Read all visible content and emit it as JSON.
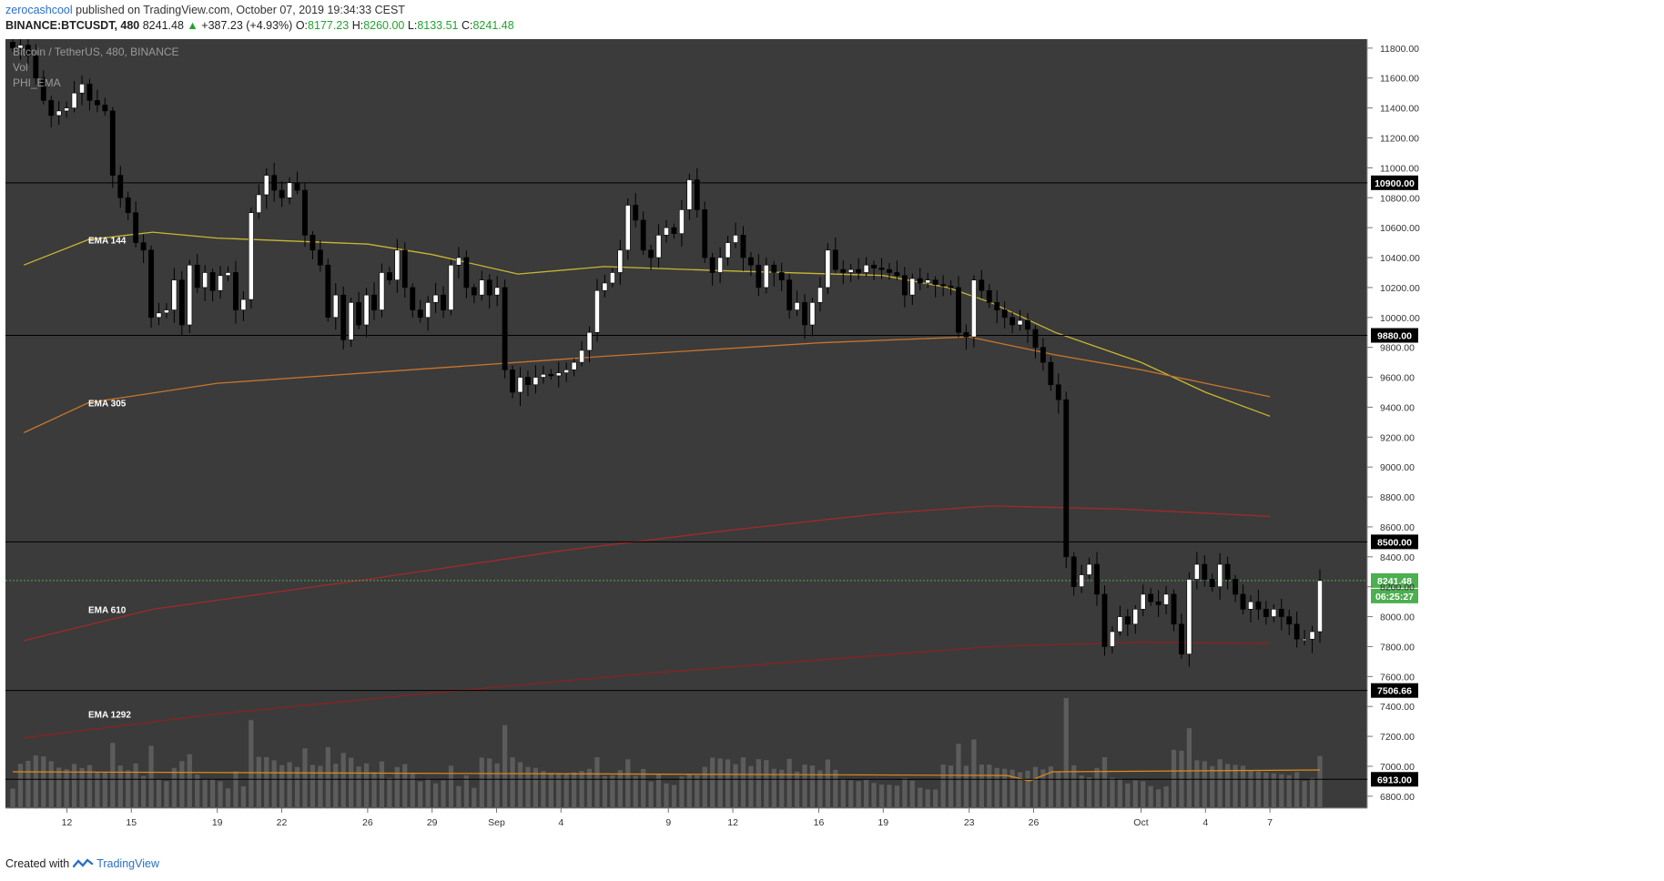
{
  "header": {
    "user": "zerocashcool",
    "published_text": "published on TradingView.com, October 07, 2019 19:34:33 CEST"
  },
  "quote": {
    "symbol": "BINANCE:BTCUSDT, 480",
    "last": "8241.48",
    "change_arrow": "▲",
    "change": "+387.23 (+4.93%)",
    "open_label": "O:",
    "open": "8177.23",
    "high_label": "H:",
    "high": "8260.00",
    "low_label": "L:",
    "low": "8133.51",
    "close_label": "C:",
    "close": "8241.48",
    "up_color": "#22a22f"
  },
  "legend": {
    "title": "Bitcoin / TetherUS, 480, BINANCE",
    "vol": "Vol",
    "indicator": "PHI_EMA"
  },
  "footer": {
    "created_with": "Created with",
    "brand": "TradingView"
  },
  "colors": {
    "background": "#3b3b3b",
    "candle_up": "#ffffff",
    "candle_down": "#000000",
    "ema144": "#c8b832",
    "ema305": "#c8762c",
    "ema610": "#a02a2a",
    "ema1292": "#8a2222",
    "volume": "#5c5c5c",
    "volume_ma": "#e08a1a",
    "last_price": "#4caf50"
  },
  "price_badges": {
    "last": "8241.48",
    "countdown": "06:25:27"
  },
  "chart_data": {
    "type": "candlestick",
    "title": "Bitcoin / TetherUS, 480, BINANCE",
    "y_axis": {
      "range": [
        6720,
        11860
      ],
      "ticks": [
        6800,
        7000,
        7200,
        7400,
        7600,
        7800,
        8000,
        8200,
        8400,
        8600,
        8800,
        9000,
        9200,
        9400,
        9600,
        9800,
        10000,
        10200,
        10400,
        10600,
        10800,
        11000,
        11200,
        11400,
        11600,
        11800
      ]
    },
    "x_axis": {
      "tick_labels": [
        "12",
        "15",
        "19",
        "22",
        "26",
        "29",
        "Sep",
        "4",
        "9",
        "12",
        "16",
        "19",
        "23",
        "26",
        "Oct",
        "4",
        "7"
      ]
    },
    "horizontal_levels": [
      {
        "label": "10900.00",
        "value": 10900,
        "axis_badge": true
      },
      {
        "label": "9880.00",
        "value": 9880,
        "axis_badge": true
      },
      {
        "label": "8500.00",
        "value": 8500,
        "axis_badge": true
      },
      {
        "label": "7506.66",
        "value": 7506.66,
        "axis_badge": true
      },
      {
        "label": "6913.00",
        "value": 6913,
        "axis_badge": true
      }
    ],
    "close_series": [
      11800,
      11820,
      11750,
      11600,
      11450,
      11350,
      11380,
      11400,
      11500,
      11560,
      11450,
      11420,
      11380,
      10950,
      10800,
      10700,
      10500,
      10450,
      10000,
      10030,
      10050,
      10250,
      9950,
      10350,
      10200,
      10300,
      10180,
      10280,
      10300,
      10050,
      10120,
      10700,
      10820,
      10950,
      10850,
      10800,
      10900,
      10850,
      10550,
      10450,
      10350,
      10000,
      10150,
      9850,
      10100,
      9950,
      10150,
      10050,
      10300,
      10250,
      10450,
      10200,
      10050,
      10000,
      10100,
      10150,
      10050,
      10350,
      10400,
      10200,
      10150,
      10250,
      10150,
      10200,
      9650,
      9500,
      9600,
      9550,
      9600,
      9620,
      9610,
      9630,
      9650,
      9700,
      9780,
      9900,
      10180,
      10230,
      10300,
      10450,
      10750,
      10650,
      10450,
      10400,
      10550,
      10600,
      10560,
      10720,
      10920,
      10720,
      10400,
      10300,
      10400,
      10500,
      10550,
      10400,
      10350,
      10200,
      10350,
      10300,
      10250,
      10050,
      10100,
      9950,
      10100,
      10200,
      10450,
      10320,
      10300,
      10320,
      10300,
      10350,
      10330,
      10320,
      10300,
      10280,
      10150,
      10260,
      10230,
      10250,
      10220,
      10210,
      10200,
      9900,
      9870,
      10250,
      10180,
      10100,
      10050,
      10000,
      9950,
      9980,
      9920,
      9800,
      9700,
      9550,
      9450,
      8400,
      8200,
      8280,
      8350,
      8150,
      7800,
      7900,
      8000,
      7950,
      8050,
      8150,
      8100,
      8080,
      8150,
      7950,
      7750,
      8250,
      8350,
      8250,
      8200,
      8350,
      8250,
      8150,
      8050,
      8100,
      8050,
      8000,
      8050,
      8000,
      7950,
      7850,
      7850,
      7900,
      8241.48
    ],
    "ema_144": [
      {
        "x": "Aug 10",
        "y": 10350
      },
      {
        "x": "Aug 13",
        "y": 10520
      },
      {
        "x": "Aug 16",
        "y": 10570
      },
      {
        "x": "Aug 19",
        "y": 10530
      },
      {
        "x": "Aug 26",
        "y": 10490
      },
      {
        "x": "Aug 29",
        "y": 10420
      },
      {
        "x": "Sep 2",
        "y": 10290
      },
      {
        "x": "Sep 6",
        "y": 10340
      },
      {
        "x": "Sep 12",
        "y": 10310
      },
      {
        "x": "Sep 19",
        "y": 10280
      },
      {
        "x": "Sep 22",
        "y": 10200
      },
      {
        "x": "Sep 24",
        "y": 10100
      },
      {
        "x": "Sep 27",
        "y": 9900
      },
      {
        "x": "Oct 1",
        "y": 9700
      },
      {
        "x": "Oct 4",
        "y": 9500
      },
      {
        "x": "Oct 7",
        "y": 9340
      }
    ],
    "ema_305": [
      {
        "x": "Aug 10",
        "y": 9230
      },
      {
        "x": "Aug 13",
        "y": 9430
      },
      {
        "x": "Aug 19",
        "y": 9560
      },
      {
        "x": "Aug 29",
        "y": 9660
      },
      {
        "x": "Sep 6",
        "y": 9740
      },
      {
        "x": "Sep 16",
        "y": 9830
      },
      {
        "x": "Sep 23",
        "y": 9870
      },
      {
        "x": "Sep 27",
        "y": 9750
      },
      {
        "x": "Oct 1",
        "y": 9650
      },
      {
        "x": "Oct 4",
        "y": 9560
      },
      {
        "x": "Oct 7",
        "y": 9470
      }
    ],
    "ema_610": [
      {
        "x": "Aug 10",
        "y": 7840
      },
      {
        "x": "Aug 16",
        "y": 8050
      },
      {
        "x": "Aug 26",
        "y": 8250
      },
      {
        "x": "Sep 4",
        "y": 8440
      },
      {
        "x": "Sep 12",
        "y": 8580
      },
      {
        "x": "Sep 19",
        "y": 8690
      },
      {
        "x": "Sep 24",
        "y": 8740
      },
      {
        "x": "Sep 30",
        "y": 8720
      },
      {
        "x": "Oct 7",
        "y": 8670
      }
    ],
    "ema_1292": [
      {
        "x": "Aug 10",
        "y": 7190
      },
      {
        "x": "Aug 19",
        "y": 7350
      },
      {
        "x": "Aug 29",
        "y": 7490
      },
      {
        "x": "Sep 8",
        "y": 7620
      },
      {
        "x": "Sep 16",
        "y": 7710
      },
      {
        "x": "Sep 24",
        "y": 7800
      },
      {
        "x": "Oct 1",
        "y": 7830
      },
      {
        "x": "Oct 7",
        "y": 7820
      }
    ],
    "series_labels": [
      "EMA 144",
      "EMA 305",
      "EMA 610",
      "EMA 1292"
    ],
    "volume_note": "relative volume bars with moving average, large spike on Sep 24"
  }
}
